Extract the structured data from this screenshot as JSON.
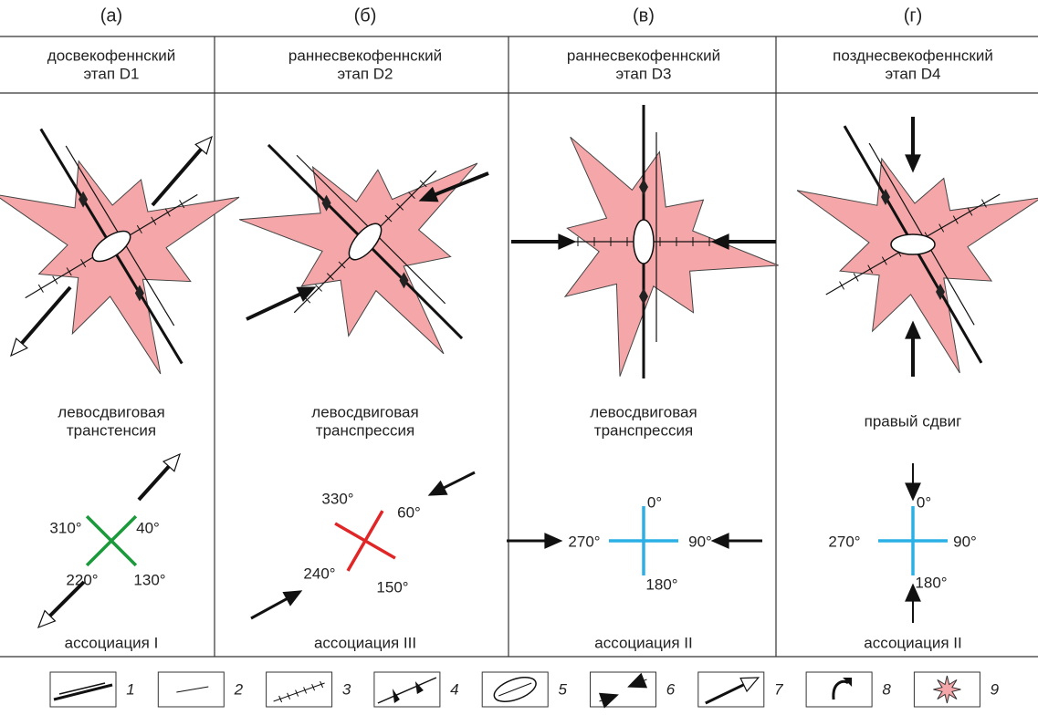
{
  "panels": [
    {
      "letter": "(а)",
      "header": [
        "досвекофеннский",
        "этап D1"
      ],
      "regime": [
        "левосдвиговая",
        "транстенсия"
      ],
      "angles": [
        "310°",
        "40°",
        "220°",
        "130°"
      ],
      "association": "ассоциация I"
    },
    {
      "letter": "(б)",
      "header": [
        "раннесвекофеннский",
        "этап D2"
      ],
      "regime": [
        "левосдвиговая",
        "транспрессия"
      ],
      "angles": [
        "330°",
        "60°",
        "240°",
        "150°"
      ],
      "association": "ассоциация III"
    },
    {
      "letter": "(в)",
      "header": [
        "раннесвекофеннский",
        "этап D3"
      ],
      "regime": [
        "левосдвиговая",
        "транспрессия"
      ],
      "angles": [
        "0°",
        "270°",
        "90°",
        "180°"
      ],
      "association": "ассоциация II"
    },
    {
      "letter": "(г)",
      "header": [
        "позднесвекофеннский",
        "этап D4"
      ],
      "regime": [
        "правый сдвиг"
      ],
      "angles": [
        "0°",
        "270°",
        "90°",
        "180°"
      ],
      "association": "ассоциация II"
    }
  ],
  "legend": [
    "1",
    "2",
    "3",
    "4",
    "5",
    "6",
    "7",
    "8",
    "9"
  ]
}
